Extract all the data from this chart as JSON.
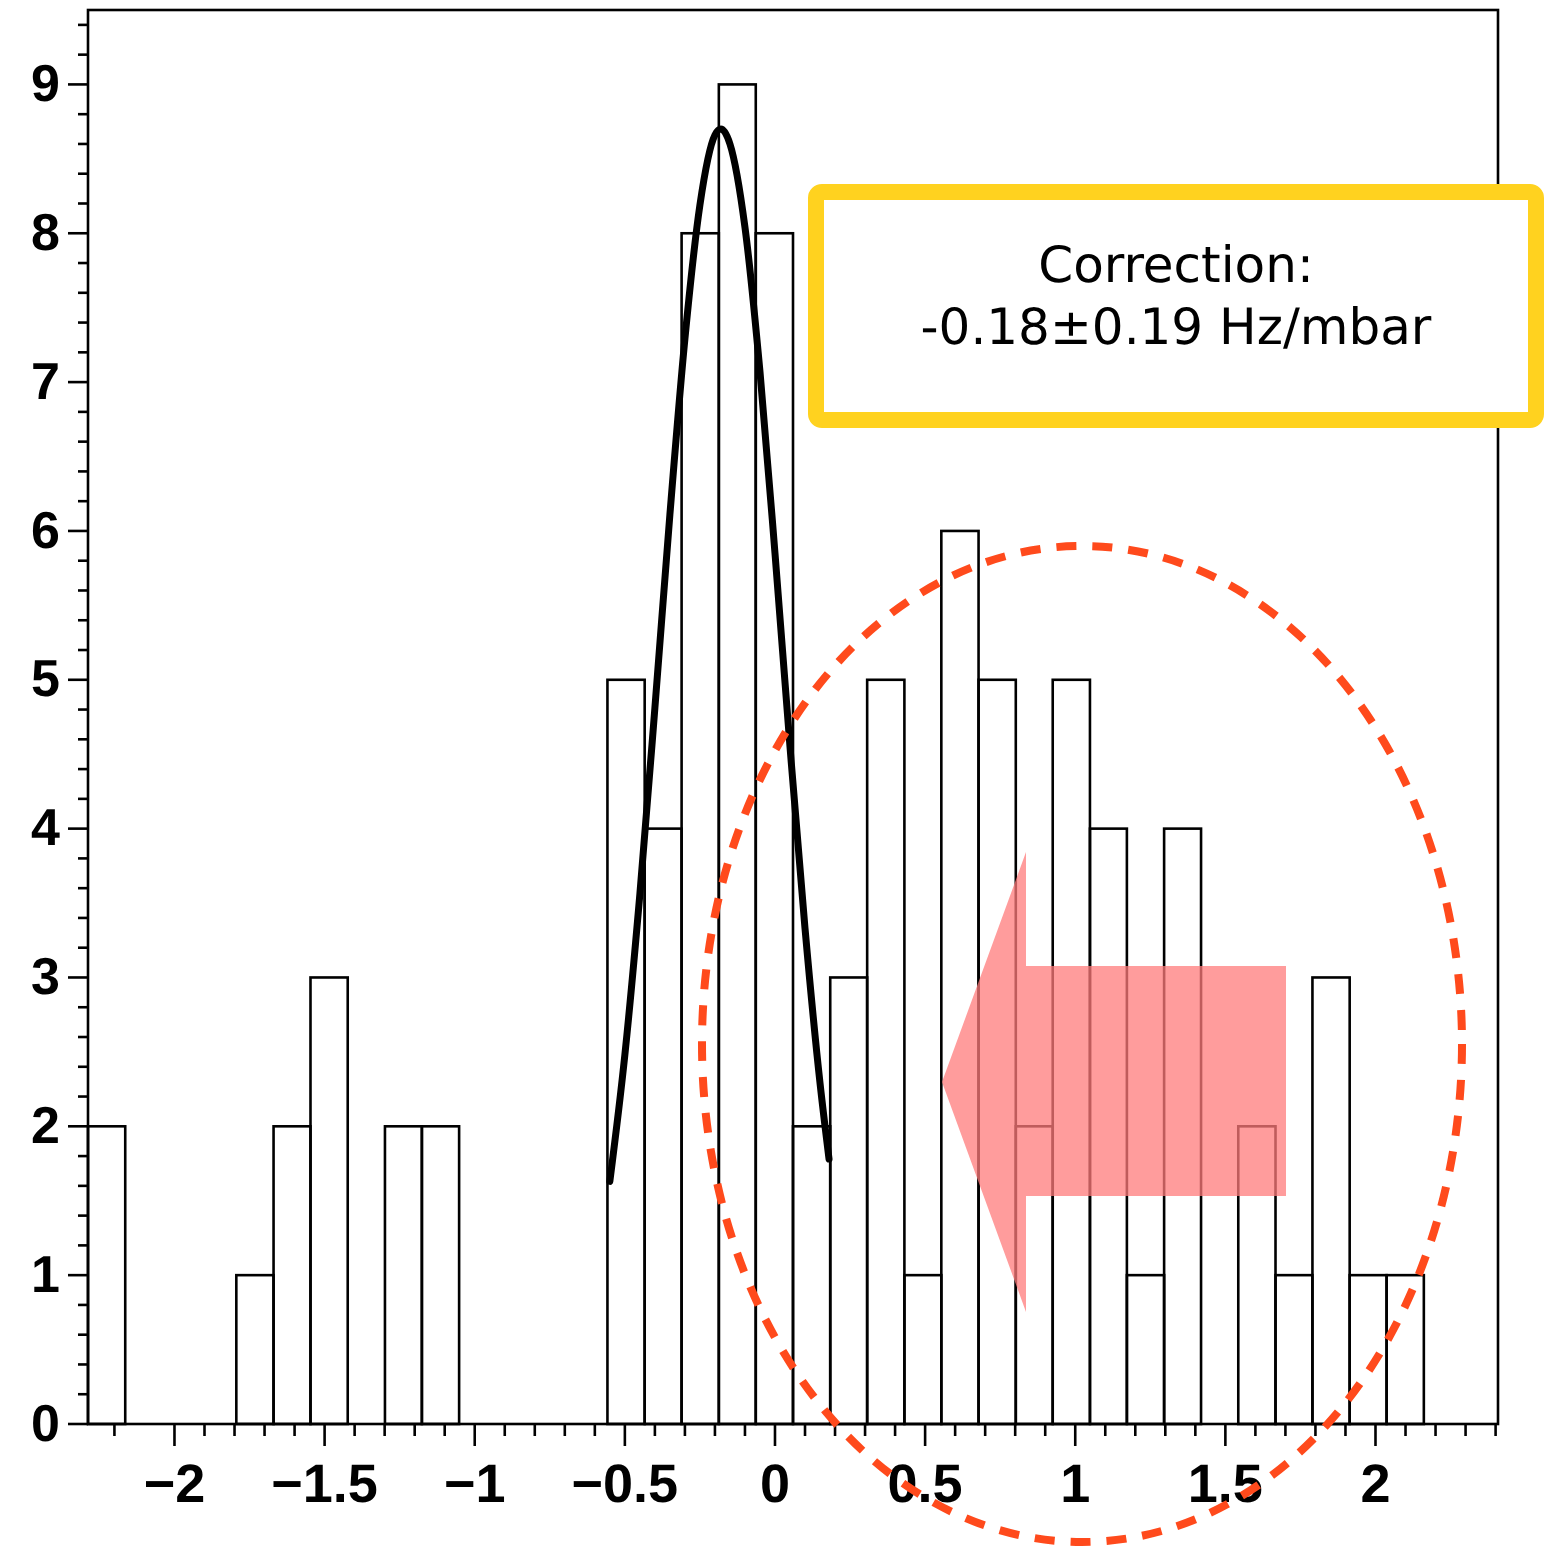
{
  "chart_data": {
    "type": "line",
    "xlim": [
      -2.288,
      2.408
    ],
    "ylim": [
      0,
      9.5
    ],
    "xticks": [
      {
        "value": -2.2,
        "label": null
      },
      {
        "value": -2,
        "label": "−2"
      },
      {
        "value": -1.9,
        "label": null
      },
      {
        "value": -1.8,
        "label": null
      },
      {
        "value": -1.7,
        "label": null
      },
      {
        "value": -1.6,
        "label": null
      },
      {
        "value": -1.5,
        "label": "−1.5"
      },
      {
        "value": -1.4,
        "label": null
      },
      {
        "value": -1.3,
        "label": null
      },
      {
        "value": -1.2,
        "label": null
      },
      {
        "value": -1.1,
        "label": null
      },
      {
        "value": -1,
        "label": "−1"
      },
      {
        "value": -0.9,
        "label": null
      },
      {
        "value": -0.8,
        "label": null
      },
      {
        "value": -0.7,
        "label": null
      },
      {
        "value": -0.6,
        "label": null
      },
      {
        "value": -0.5,
        "label": "−0.5"
      },
      {
        "value": -0.4,
        "label": null
      },
      {
        "value": -0.3,
        "label": null
      },
      {
        "value": -0.2,
        "label": null
      },
      {
        "value": -0.1,
        "label": null
      },
      0,
      {
        "value": 0.1,
        "label": null
      },
      {
        "value": 0.2,
        "label": null
      },
      {
        "value": 0.3,
        "label": null
      },
      {
        "value": 0.4,
        "label": null
      },
      0.5,
      {
        "value": 0.6,
        "label": null
      },
      {
        "value": 0.7,
        "label": null
      },
      {
        "value": 0.8,
        "label": null
      },
      {
        "value": 0.9,
        "label": null
      },
      1,
      {
        "value": 1.1,
        "label": null
      },
      {
        "value": 1.2,
        "label": null
      },
      {
        "value": 1.3,
        "label": null
      },
      {
        "value": 1.4,
        "label": null
      },
      1.5,
      {
        "value": 1.6,
        "label": null
      },
      {
        "value": 1.7,
        "label": null
      },
      {
        "value": 1.8,
        "label": null
      },
      {
        "value": 1.9,
        "label": null
      },
      2,
      {
        "value": 2.1,
        "label": null
      },
      {
        "value": 2.2,
        "label": null
      },
      {
        "value": 2.3,
        "label": null
      },
      {
        "value": 2.4,
        "label": null
      }
    ],
    "yticks": [
      0,
      {
        "value": 0.2,
        "label": null
      },
      {
        "value": 0.4,
        "label": null
      },
      {
        "value": 0.6,
        "label": null
      },
      {
        "value": 0.8,
        "label": null
      },
      1,
      {
        "value": 1.2,
        "label": null
      },
      {
        "value": 1.4,
        "label": null
      },
      {
        "value": 1.6,
        "label": null
      },
      {
        "value": 1.8,
        "label": null
      },
      2,
      {
        "value": 2.2,
        "label": null
      },
      {
        "value": 2.4,
        "label": null
      },
      {
        "value": 2.6,
        "label": null
      },
      {
        "value": 2.8,
        "label": null
      },
      3,
      {
        "value": 3.2,
        "label": null
      },
      {
        "value": 3.4,
        "label": null
      },
      {
        "value": 3.6,
        "label": null
      },
      {
        "value": 3.8,
        "label": null
      },
      4,
      {
        "value": 4.2,
        "label": null
      },
      {
        "value": 4.4,
        "label": null
      },
      {
        "value": 4.6,
        "label": null
      },
      {
        "value": 4.8,
        "label": null
      },
      5,
      {
        "value": 5.2,
        "label": null
      },
      {
        "value": 5.4,
        "label": null
      },
      {
        "value": 5.6,
        "label": null
      },
      {
        "value": 5.8,
        "label": null
      },
      6,
      {
        "value": 6.2,
        "label": null
      },
      {
        "value": 6.4,
        "label": null
      },
      {
        "value": 6.6,
        "label": null
      },
      {
        "value": 6.8,
        "label": null
      },
      7,
      {
        "value": 7.2,
        "label": null
      },
      {
        "value": 7.4,
        "label": null
      },
      {
        "value": 7.6,
        "label": null
      },
      {
        "value": 7.8,
        "label": null
      },
      8,
      {
        "value": 8.2,
        "label": null
      },
      {
        "value": 8.4,
        "label": null
      },
      {
        "value": 8.6,
        "label": null
      },
      {
        "value": 8.8,
        "label": null
      },
      9,
      {
        "value": 9.2,
        "label": null
      },
      {
        "value": 9.4,
        "label": null
      }
    ],
    "series": [
      {
        "type": "histogram",
        "color": "#000000",
        "bins": [
          -2.288,
          -2.164,
          -2.041,
          -1.917,
          -1.794,
          -1.67,
          -1.547,
          -1.423,
          -1.299,
          -1.176,
          -1.052,
          -0.929,
          -0.805,
          -0.681,
          -0.558,
          -0.434,
          -0.311,
          -0.187,
          -0.064,
          0.06,
          0.184,
          0.307,
          0.431,
          0.554,
          0.678,
          0.802,
          0.925,
          1.049,
          1.172,
          1.296,
          1.419,
          1.543,
          1.667,
          1.79,
          1.914,
          2.037,
          2.161,
          2.284,
          2.408
        ],
        "values": [
          2,
          0,
          0,
          0,
          1,
          2,
          3,
          0,
          2,
          2,
          0,
          0,
          0,
          0,
          5,
          4,
          8,
          9,
          8,
          2,
          3,
          5,
          1,
          6,
          5,
          2,
          5,
          4,
          1,
          4,
          0,
          2,
          1,
          3,
          1,
          1,
          0,
          0
        ]
      },
      {
        "color": "#000000",
        "x": [
          -0.55,
          -0.5,
          -0.45,
          -0.4,
          -0.35,
          -0.3,
          -0.25,
          -0.2,
          -0.18,
          -0.15,
          -0.1,
          -0.05,
          0,
          0.05,
          0.1,
          0.15,
          0.18
        ],
        "values": [
          1.63,
          2.48,
          3.56,
          4.81,
          6.11,
          7.29,
          8.19,
          8.66,
          8.7,
          8.6,
          8.04,
          7.07,
          5.85,
          4.55,
          3.33,
          2.29,
          1.78
        ]
      }
    ],
    "annotations": [
      "Correction:\n-0.18±0.19 Hz/mbar"
    ]
  }
}
